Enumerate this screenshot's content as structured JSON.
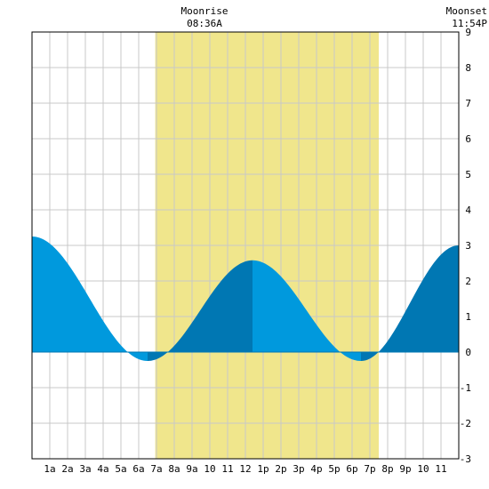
{
  "header": {
    "moonrise_label": "Moonrise",
    "moonrise_time": "08:36A",
    "moonset_label": "Moonset",
    "moonset_time": "11:54P"
  },
  "chart_data": {
    "type": "area",
    "title": "",
    "xlabel": "",
    "ylabel": "",
    "xlim": [
      0,
      24
    ],
    "ylim": [
      -3,
      9
    ],
    "yticks": [
      -3,
      -2,
      -1,
      0,
      1,
      2,
      3,
      4,
      5,
      6,
      7,
      8,
      9
    ],
    "xtick_labels": [
      "1a",
      "2a",
      "3a",
      "4a",
      "5a",
      "6a",
      "7a",
      "8a",
      "9a",
      "10",
      "11",
      "12",
      "1p",
      "2p",
      "3p",
      "4p",
      "5p",
      "6p",
      "7p",
      "8p",
      "9p",
      "10",
      "11"
    ],
    "grid": true,
    "daylight_band_hours": [
      6.93,
      19.5
    ],
    "tide_extremes": [
      {
        "hour": 0.0,
        "height": 3.25,
        "kind": "high"
      },
      {
        "hour": 6.5,
        "height": -0.25,
        "kind": "low"
      },
      {
        "hour": 12.4,
        "height": 2.58,
        "kind": "high"
      },
      {
        "hour": 18.5,
        "height": -0.25,
        "kind": "low"
      },
      {
        "hour": 24.0,
        "height": 3.0,
        "kind": "high"
      }
    ],
    "colors": {
      "daylight": "#f0e68c",
      "tide_light": "#0099dd",
      "tide_dark": "#0077b3",
      "grid": "#c8c8c8"
    }
  }
}
